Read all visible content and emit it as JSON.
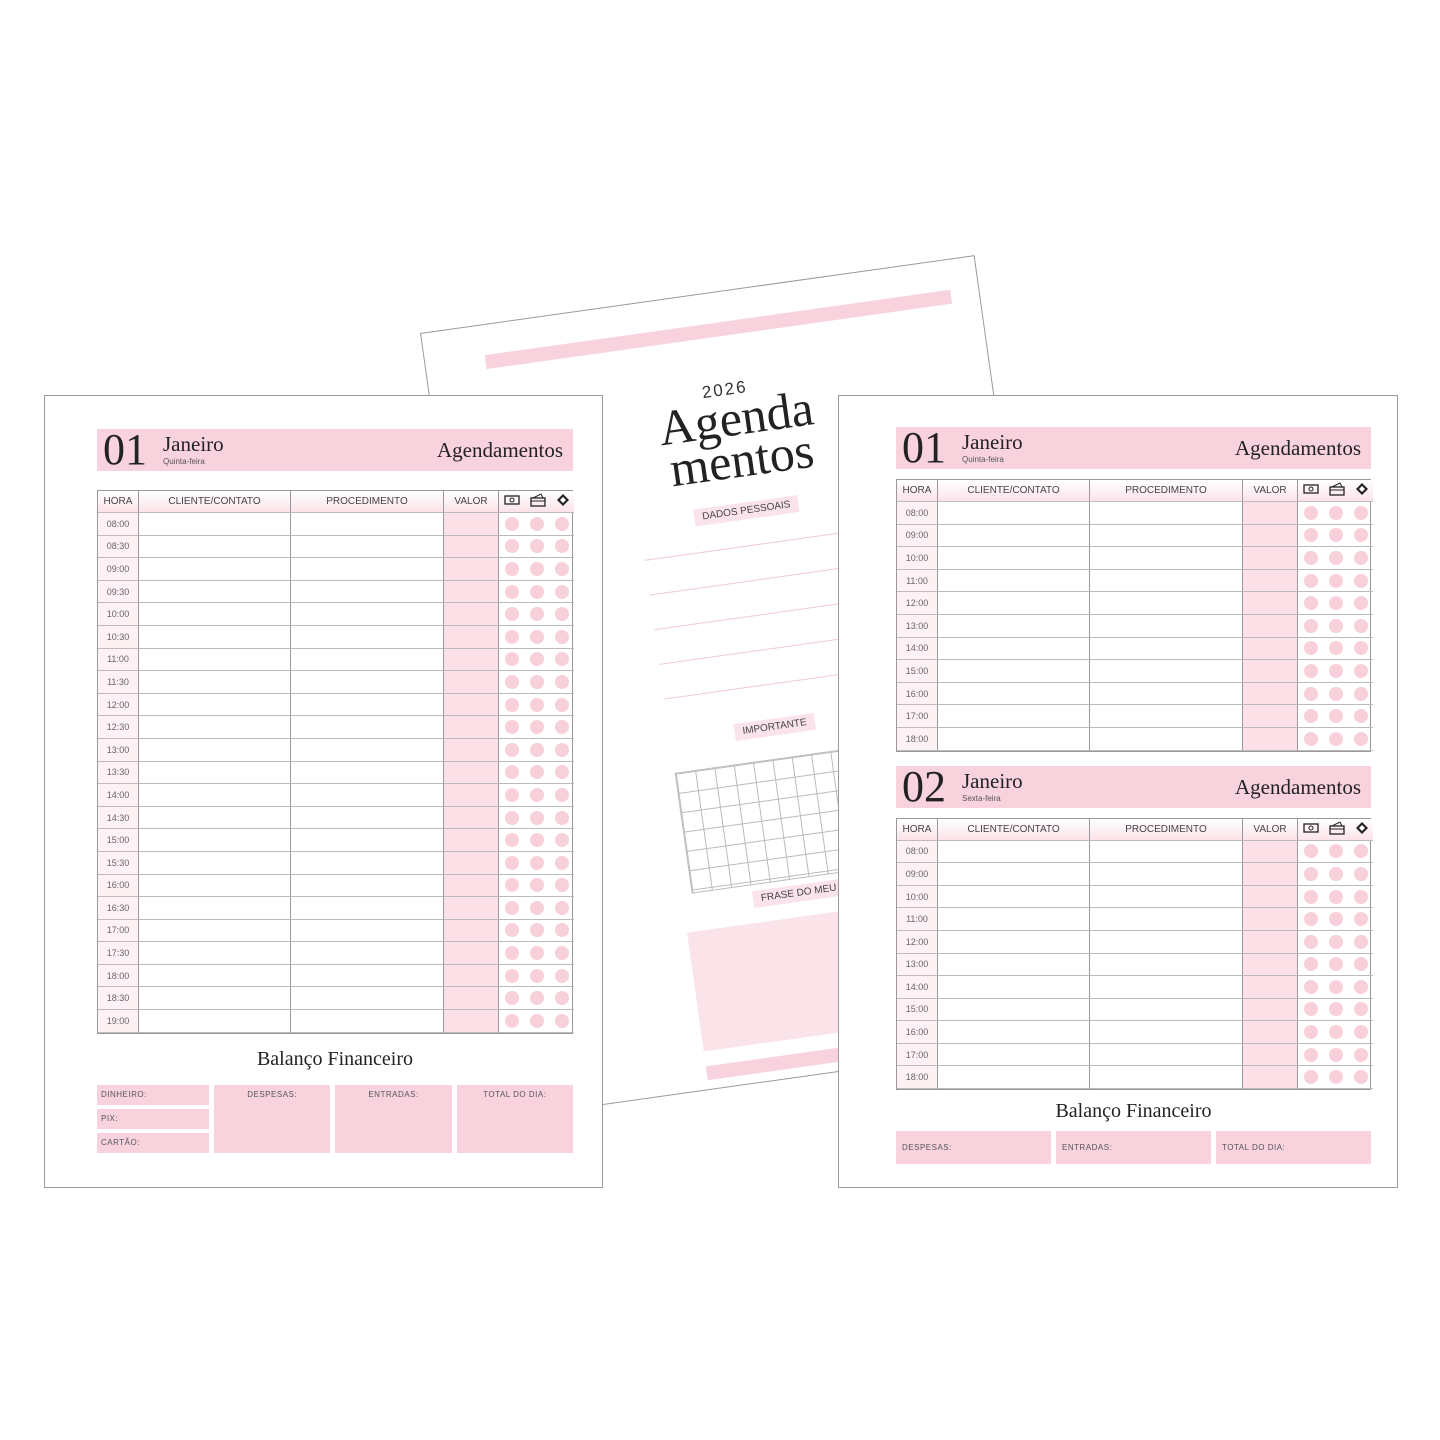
{
  "colors": {
    "accent_pink": "#f8d3dd",
    "dot_pink": "#f7d0da",
    "text": "#222222",
    "border": "#999999"
  },
  "cover": {
    "year": "2026",
    "title_line1": "Agenda",
    "title_line2": "mentos",
    "sections": [
      "DADOS PESSOAIS",
      "IMPORTANTE",
      "FRASE DO MEU ANO"
    ]
  },
  "columns": {
    "hora": "HORA",
    "cliente": "CLIENTE/CONTATO",
    "procedimento": "PROCEDIMENTO",
    "valor": "VALOR",
    "payment_icons": [
      "cash-icon",
      "card-icon",
      "pix-icon"
    ]
  },
  "left_page": {
    "days": [
      {
        "number": "01",
        "month": "Janeiro",
        "weekday": "Quinta-feira",
        "title": "Agendamentos",
        "times": [
          "08:00",
          "08:30",
          "09:00",
          "09:30",
          "10:00",
          "10:30",
          "11:00",
          "11:30",
          "12:00",
          "12:30",
          "13:00",
          "13:30",
          "14:00",
          "14:30",
          "15:00",
          "15:30",
          "16:00",
          "16:30",
          "17:00",
          "17:30",
          "18:00",
          "18:30",
          "19:00"
        ]
      }
    ],
    "finance": {
      "title": "Balanço Financeiro",
      "stack": [
        "DINHEIRO:",
        "PIX:",
        "CARTÃO:"
      ],
      "boxes": [
        "DESPESAS:",
        "ENTRADAS:",
        "TOTAL DO DIA:"
      ]
    }
  },
  "right_page": {
    "days": [
      {
        "number": "01",
        "month": "Janeiro",
        "weekday": "Quinta-feira",
        "title": "Agendamentos",
        "times": [
          "08:00",
          "09:00",
          "10:00",
          "11:00",
          "12:00",
          "13:00",
          "14:00",
          "15:00",
          "16:00",
          "17:00",
          "18:00"
        ]
      },
      {
        "number": "02",
        "month": "Janeiro",
        "weekday": "Sexta-feira",
        "title": "Agendamentos",
        "times": [
          "08:00",
          "09:00",
          "10:00",
          "11:00",
          "12:00",
          "13:00",
          "14:00",
          "15:00",
          "16:00",
          "17:00",
          "18:00"
        ]
      }
    ],
    "finance": {
      "title": "Balanço Financeiro",
      "stack": [],
      "boxes": [
        "DESPESAS:",
        "ENTRADAS:",
        "TOTAL DO DIA:"
      ]
    }
  }
}
